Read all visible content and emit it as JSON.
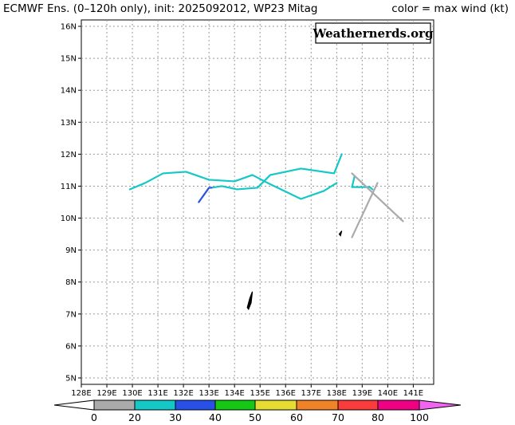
{
  "title_left": "ECMWF Ens. (0–120h only), init: 2025092012, WP23 Mitag",
  "title_right": "color = max wind (kt)",
  "watermark": "Weathernerds.org",
  "axes": {
    "lon_labels": [
      "128E",
      "129E",
      "130E",
      "131E",
      "132E",
      "133E",
      "134E",
      "135E",
      "136E",
      "137E",
      "138E",
      "139E",
      "140E",
      "141E"
    ],
    "lat_labels": [
      "5N",
      "6N",
      "7N",
      "8N",
      "9N",
      "10N",
      "11N",
      "12N",
      "13N",
      "14N",
      "15N",
      "16N"
    ]
  },
  "colorbar": {
    "labels": [
      "0",
      "20",
      "30",
      "40",
      "50",
      "60",
      "70",
      "80",
      "100"
    ],
    "colors": [
      "#ffffff",
      "#aaaaaa",
      "#14c8c8",
      "#2850e6",
      "#14c814",
      "#e6dc32",
      "#f08228",
      "#fa3c3c",
      "#f00082",
      "#f064f0"
    ]
  },
  "chart_data": {
    "type": "map",
    "lon_range": [
      128,
      141.8
    ],
    "lat_range": [
      4.8,
      16.2
    ],
    "grid": true,
    "tracks": [
      {
        "color": "#14c8c8",
        "points": [
          [
            129.9,
            10.9
          ],
          [
            130.5,
            11.1
          ],
          [
            131.2,
            11.4
          ],
          [
            132.1,
            11.45
          ],
          [
            133.0,
            11.2
          ],
          [
            134.0,
            11.15
          ],
          [
            134.7,
            11.35
          ],
          [
            135.3,
            11.1
          ],
          [
            136.6,
            10.6
          ],
          [
            137.5,
            10.85
          ],
          [
            138.0,
            11.1
          ]
        ]
      },
      {
        "color": "#14c8c8",
        "points": [
          [
            133.1,
            10.95
          ],
          [
            133.5,
            11.0
          ],
          [
            134.1,
            10.9
          ],
          [
            134.9,
            10.95
          ],
          [
            135.4,
            11.35
          ],
          [
            136.6,
            11.55
          ],
          [
            137.9,
            11.4
          ],
          [
            138.2,
            12.0
          ]
        ]
      },
      {
        "color": "#2850e6",
        "points": [
          [
            132.6,
            10.5
          ],
          [
            133.0,
            10.95
          ],
          [
            133.1,
            10.95
          ]
        ]
      },
      {
        "color": "#14c8c8",
        "points": [
          [
            138.7,
            11.3
          ],
          [
            138.6,
            10.97
          ],
          [
            139.3,
            10.97
          ],
          [
            139.4,
            10.9
          ]
        ]
      },
      {
        "color": "#aaaaaa",
        "points": [
          [
            138.6,
            11.4
          ],
          [
            139.4,
            10.8
          ],
          [
            140.6,
            9.9
          ]
        ]
      },
      {
        "color": "#aaaaaa",
        "points": [
          [
            138.6,
            9.4
          ],
          [
            139.3,
            10.6
          ],
          [
            139.6,
            11.1
          ]
        ]
      }
    ],
    "islands": [
      {
        "name": "",
        "points": [
          [
            134.5,
            7.2
          ],
          [
            134.6,
            7.5
          ],
          [
            134.7,
            7.7
          ],
          [
            134.65,
            7.35
          ],
          [
            134.55,
            7.15
          ]
        ]
      },
      {
        "name": "",
        "points": [
          [
            138.1,
            9.5
          ],
          [
            138.2,
            9.6
          ],
          [
            138.15,
            9.45
          ]
        ]
      }
    ]
  }
}
